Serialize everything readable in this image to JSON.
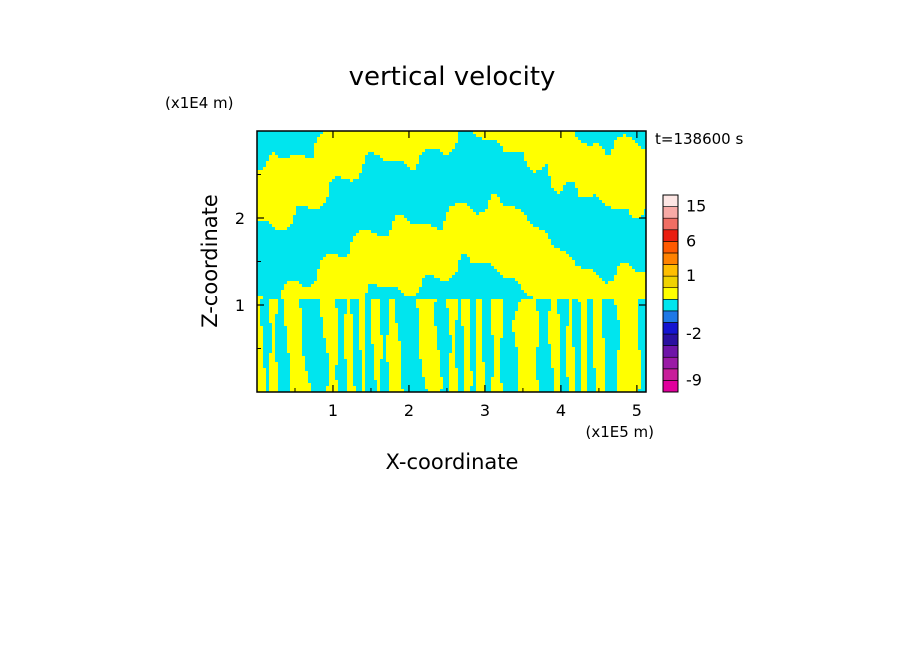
{
  "chart_data": {
    "type": "heatmap",
    "title": "vertical velocity",
    "xlabel": "X-coordinate",
    "ylabel": "Z-coordinate",
    "x_unit": "(x1E5 m)",
    "y_unit": "(x1E4 m)",
    "time_label": "t=138600 s",
    "xlim": [
      0,
      5.12
    ],
    "ylim": [
      0,
      3.0
    ],
    "x_ticks": [
      1,
      2,
      3,
      4,
      5
    ],
    "y_ticks": [
      1,
      2
    ],
    "colorbar": {
      "tick_labels": [
        "15",
        "6",
        "1",
        "-2",
        "-9"
      ],
      "tick_values": [
        15,
        6,
        1,
        -2,
        -9
      ],
      "levels": [
        {
          "from": -12,
          "to": -9,
          "color": "#e0009c"
        },
        {
          "from": -9,
          "to": -6,
          "color": "#c81e9a"
        },
        {
          "from": -6,
          "to": -4,
          "color": "#9a1aa6"
        },
        {
          "from": -4,
          "to": -3,
          "color": "#6e14a8"
        },
        {
          "from": -3,
          "to": -2,
          "color": "#2a10a0"
        },
        {
          "from": -2,
          "to": -1,
          "color": "#1414d0"
        },
        {
          "from": -1,
          "to": -0.5,
          "color": "#1e78e6"
        },
        {
          "from": -0.5,
          "to": 0,
          "color": "#00e5ee"
        },
        {
          "from": 0,
          "to": 0.5,
          "color": "#ffff00"
        },
        {
          "from": 0.5,
          "to": 1,
          "color": "#f0d200"
        },
        {
          "from": 1,
          "to": 2,
          "color": "#ffbe00"
        },
        {
          "from": 2,
          "to": 4,
          "color": "#ff8200"
        },
        {
          "from": 4,
          "to": 6,
          "color": "#ff5a00"
        },
        {
          "from": 6,
          "to": 9,
          "color": "#ea1e10"
        },
        {
          "from": 9,
          "to": 12,
          "color": "#f06e64"
        },
        {
          "from": 12,
          "to": 15,
          "color": "#f8aaa6"
        },
        {
          "from": 15,
          "to": 20,
          "color": "#fde6e4"
        }
      ]
    },
    "field_colors": {
      "negative": "#00e5ee",
      "positive": "#ffff00"
    }
  }
}
